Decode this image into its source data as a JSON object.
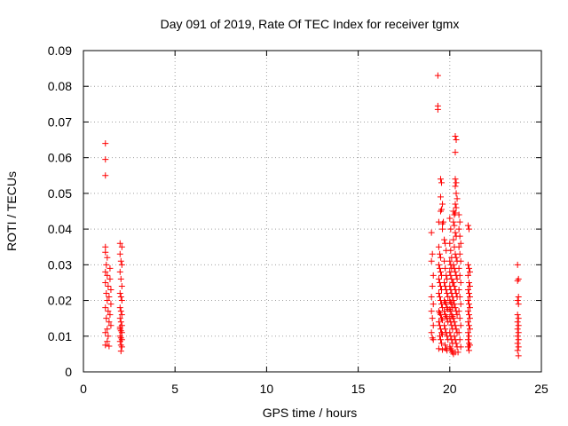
{
  "chart_data": {
    "type": "scatter",
    "title": "Day 091 of 2019, Rate Of TEC Index for receiver tgmx",
    "xlabel": "GPS time / hours",
    "ylabel": "ROTI / TECUs",
    "xlim": [
      0,
      25
    ],
    "ylim": [
      0,
      0.09
    ],
    "xticks": [
      0,
      5,
      10,
      15,
      20,
      25
    ],
    "yticks": [
      0,
      0.01,
      0.02,
      0.03,
      0.04,
      0.05,
      0.06,
      0.07,
      0.08,
      0.09
    ],
    "xtick_labels": [
      "0",
      "5",
      "10",
      "15",
      "20",
      "25"
    ],
    "ytick_labels": [
      "0",
      "0.01",
      "0.02",
      "0.03",
      "0.04",
      "0.05",
      "0.06",
      "0.07",
      "0.08",
      "0.09"
    ],
    "grid": true,
    "marker": "+",
    "marker_color": "#ff0000",
    "series": [
      {
        "name": "ROTI",
        "points": [
          [
            1.2,
            0.064
          ],
          [
            1.2,
            0.0595
          ],
          [
            1.2,
            0.055
          ],
          [
            1.2,
            0.035
          ],
          [
            1.2,
            0.0335
          ],
          [
            1.25,
            0.03
          ],
          [
            1.2,
            0.028
          ],
          [
            1.3,
            0.027
          ],
          [
            1.2,
            0.025
          ],
          [
            1.35,
            0.024
          ],
          [
            1.25,
            0.022
          ],
          [
            1.3,
            0.02
          ],
          [
            1.2,
            0.018
          ],
          [
            1.35,
            0.017
          ],
          [
            1.25,
            0.015
          ],
          [
            1.4,
            0.014
          ],
          [
            1.3,
            0.012
          ],
          [
            1.2,
            0.011
          ],
          [
            1.35,
            0.01
          ],
          [
            1.3,
            0.0085
          ],
          [
            1.2,
            0.0075
          ],
          [
            1.4,
            0.0072
          ],
          [
            1.45,
            0.029
          ],
          [
            1.45,
            0.026
          ],
          [
            1.5,
            0.023
          ],
          [
            1.5,
            0.019
          ],
          [
            1.45,
            0.016
          ],
          [
            1.5,
            0.013
          ],
          [
            1.4,
            0.021
          ],
          [
            1.3,
            0.032
          ],
          [
            2.0,
            0.036
          ],
          [
            2.1,
            0.035
          ],
          [
            2.0,
            0.033
          ],
          [
            2.05,
            0.031
          ],
          [
            2.1,
            0.03
          ],
          [
            2.0,
            0.028
          ],
          [
            2.05,
            0.026
          ],
          [
            2.1,
            0.024
          ],
          [
            2.0,
            0.022
          ],
          [
            2.05,
            0.021
          ],
          [
            2.1,
            0.02
          ],
          [
            2.0,
            0.018
          ],
          [
            2.05,
            0.017
          ],
          [
            2.1,
            0.016
          ],
          [
            2.0,
            0.015
          ],
          [
            2.05,
            0.014
          ],
          [
            2.1,
            0.013
          ],
          [
            2.0,
            0.012
          ],
          [
            2.05,
            0.0115
          ],
          [
            2.1,
            0.011
          ],
          [
            2.0,
            0.01
          ],
          [
            2.05,
            0.0095
          ],
          [
            2.1,
            0.009
          ],
          [
            2.0,
            0.0085
          ],
          [
            2.05,
            0.0075
          ],
          [
            2.1,
            0.007
          ],
          [
            2.05,
            0.0058
          ],
          [
            2.0,
            0.0125
          ],
          [
            19.0,
            0.039
          ],
          [
            19.05,
            0.033
          ],
          [
            19.0,
            0.031
          ],
          [
            19.1,
            0.027
          ],
          [
            19.05,
            0.024
          ],
          [
            19.0,
            0.021
          ],
          [
            19.1,
            0.019
          ],
          [
            19.0,
            0.017
          ],
          [
            19.05,
            0.015
          ],
          [
            19.1,
            0.013
          ],
          [
            19.0,
            0.011
          ],
          [
            19.05,
            0.0095
          ],
          [
            19.1,
            0.009
          ],
          [
            19.35,
            0.083
          ],
          [
            19.35,
            0.0745
          ],
          [
            19.35,
            0.0735
          ],
          [
            19.4,
            0.042
          ],
          [
            19.5,
            0.054
          ],
          [
            19.55,
            0.053
          ],
          [
            19.5,
            0.049
          ],
          [
            19.6,
            0.047
          ],
          [
            19.5,
            0.045
          ],
          [
            19.55,
            0.0455
          ],
          [
            19.6,
            0.0415
          ],
          [
            19.65,
            0.042
          ],
          [
            19.6,
            0.04
          ],
          [
            19.4,
            0.035
          ],
          [
            19.45,
            0.033
          ],
          [
            19.5,
            0.032
          ],
          [
            19.4,
            0.03
          ],
          [
            19.45,
            0.029
          ],
          [
            19.5,
            0.028
          ],
          [
            19.55,
            0.027
          ],
          [
            19.4,
            0.026
          ],
          [
            19.45,
            0.025
          ],
          [
            19.5,
            0.024
          ],
          [
            19.55,
            0.023
          ],
          [
            19.4,
            0.022
          ],
          [
            19.45,
            0.021
          ],
          [
            19.5,
            0.02
          ],
          [
            19.55,
            0.019
          ],
          [
            19.6,
            0.018
          ],
          [
            19.4,
            0.017
          ],
          [
            19.45,
            0.0165
          ],
          [
            19.5,
            0.016
          ],
          [
            19.55,
            0.015
          ],
          [
            19.6,
            0.0145
          ],
          [
            19.4,
            0.014
          ],
          [
            19.45,
            0.013
          ],
          [
            19.5,
            0.012
          ],
          [
            19.55,
            0.011
          ],
          [
            19.6,
            0.0105
          ],
          [
            19.45,
            0.01
          ],
          [
            19.5,
            0.009
          ],
          [
            19.55,
            0.008
          ],
          [
            19.4,
            0.0065
          ],
          [
            19.6,
            0.0062
          ],
          [
            19.7,
            0.037
          ],
          [
            19.75,
            0.036
          ],
          [
            19.8,
            0.034
          ],
          [
            19.7,
            0.031
          ],
          [
            19.75,
            0.029
          ],
          [
            19.8,
            0.027
          ],
          [
            19.85,
            0.026
          ],
          [
            19.7,
            0.025
          ],
          [
            19.75,
            0.024
          ],
          [
            19.8,
            0.023
          ],
          [
            19.85,
            0.022
          ],
          [
            19.9,
            0.021
          ],
          [
            19.7,
            0.02
          ],
          [
            19.75,
            0.0195
          ],
          [
            19.8,
            0.019
          ],
          [
            19.85,
            0.018
          ],
          [
            19.9,
            0.0175
          ],
          [
            19.7,
            0.017
          ],
          [
            19.75,
            0.016
          ],
          [
            19.8,
            0.0155
          ],
          [
            19.85,
            0.015
          ],
          [
            19.9,
            0.014
          ],
          [
            19.7,
            0.013
          ],
          [
            19.75,
            0.012
          ],
          [
            19.8,
            0.011
          ],
          [
            19.85,
            0.01
          ],
          [
            19.9,
            0.009
          ],
          [
            19.75,
            0.0075
          ],
          [
            19.8,
            0.0065
          ],
          [
            19.85,
            0.006
          ],
          [
            20.0,
            0.043
          ],
          [
            20.05,
            0.04
          ],
          [
            20.0,
            0.036
          ],
          [
            20.05,
            0.034
          ],
          [
            20.1,
            0.032
          ],
          [
            20.0,
            0.031
          ],
          [
            20.05,
            0.03
          ],
          [
            20.1,
            0.029
          ],
          [
            20.0,
            0.028
          ],
          [
            20.05,
            0.027
          ],
          [
            20.1,
            0.026
          ],
          [
            20.15,
            0.025
          ],
          [
            20.0,
            0.024
          ],
          [
            20.05,
            0.023
          ],
          [
            20.1,
            0.022
          ],
          [
            20.15,
            0.021
          ],
          [
            20.0,
            0.02
          ],
          [
            20.05,
            0.0195
          ],
          [
            20.1,
            0.019
          ],
          [
            20.15,
            0.018
          ],
          [
            20.0,
            0.0175
          ],
          [
            20.05,
            0.017
          ],
          [
            20.1,
            0.016
          ],
          [
            20.15,
            0.0155
          ],
          [
            20.0,
            0.015
          ],
          [
            20.05,
            0.014
          ],
          [
            20.1,
            0.013
          ],
          [
            20.15,
            0.012
          ],
          [
            20.0,
            0.011
          ],
          [
            20.05,
            0.01
          ],
          [
            20.1,
            0.009
          ],
          [
            20.15,
            0.008
          ],
          [
            20.0,
            0.007
          ],
          [
            20.05,
            0.0065
          ],
          [
            20.1,
            0.006
          ],
          [
            20.15,
            0.0055
          ],
          [
            20.2,
            0.005
          ],
          [
            20.2,
            0.045
          ],
          [
            20.25,
            0.044
          ],
          [
            20.3,
            0.0445
          ],
          [
            20.2,
            0.042
          ],
          [
            20.25,
            0.041
          ],
          [
            20.3,
            0.039
          ],
          [
            20.35,
            0.038
          ],
          [
            20.2,
            0.037
          ],
          [
            20.25,
            0.035
          ],
          [
            20.3,
            0.033
          ],
          [
            20.35,
            0.032
          ],
          [
            20.4,
            0.031
          ],
          [
            20.2,
            0.03
          ],
          [
            20.25,
            0.029
          ],
          [
            20.3,
            0.028
          ],
          [
            20.35,
            0.027
          ],
          [
            20.4,
            0.026
          ],
          [
            20.2,
            0.025
          ],
          [
            20.25,
            0.024
          ],
          [
            20.3,
            0.023
          ],
          [
            20.35,
            0.022
          ],
          [
            20.4,
            0.021
          ],
          [
            20.2,
            0.02
          ],
          [
            20.25,
            0.019
          ],
          [
            20.3,
            0.018
          ],
          [
            20.35,
            0.017
          ],
          [
            20.4,
            0.016
          ],
          [
            20.2,
            0.015
          ],
          [
            20.25,
            0.014
          ],
          [
            20.3,
            0.013
          ],
          [
            20.35,
            0.012
          ],
          [
            20.4,
            0.011
          ],
          [
            20.25,
            0.01
          ],
          [
            20.3,
            0.009
          ],
          [
            20.35,
            0.008
          ],
          [
            20.4,
            0.007
          ],
          [
            20.3,
            0.0055
          ],
          [
            20.3,
            0.066
          ],
          [
            20.35,
            0.065
          ],
          [
            20.3,
            0.0615
          ],
          [
            20.3,
            0.054
          ],
          [
            20.35,
            0.053
          ],
          [
            20.3,
            0.052
          ],
          [
            20.35,
            0.05
          ],
          [
            20.4,
            0.0485
          ],
          [
            20.3,
            0.047
          ],
          [
            20.35,
            0.046
          ],
          [
            20.5,
            0.044
          ],
          [
            20.55,
            0.042
          ],
          [
            20.5,
            0.04
          ],
          [
            20.55,
            0.038
          ],
          [
            20.6,
            0.036
          ],
          [
            20.5,
            0.035
          ],
          [
            20.55,
            0.033
          ],
          [
            20.6,
            0.031
          ],
          [
            20.5,
            0.029
          ],
          [
            20.55,
            0.027
          ],
          [
            20.6,
            0.025
          ],
          [
            20.5,
            0.023
          ],
          [
            20.55,
            0.021
          ],
          [
            20.6,
            0.019
          ],
          [
            20.5,
            0.017
          ],
          [
            20.55,
            0.015
          ],
          [
            20.6,
            0.013
          ],
          [
            20.5,
            0.011
          ],
          [
            20.55,
            0.009
          ],
          [
            20.6,
            0.007
          ],
          [
            20.45,
            0.0055
          ],
          [
            21.0,
            0.041
          ],
          [
            21.05,
            0.04
          ],
          [
            21.0,
            0.03
          ],
          [
            21.05,
            0.029
          ],
          [
            21.1,
            0.028
          ],
          [
            21.0,
            0.027
          ],
          [
            21.05,
            0.025
          ],
          [
            21.1,
            0.024
          ],
          [
            21.0,
            0.023
          ],
          [
            21.05,
            0.022
          ],
          [
            21.1,
            0.021
          ],
          [
            21.0,
            0.02
          ],
          [
            21.05,
            0.019
          ],
          [
            21.1,
            0.018
          ],
          [
            21.0,
            0.017
          ],
          [
            21.05,
            0.016
          ],
          [
            21.1,
            0.015
          ],
          [
            21.0,
            0.014
          ],
          [
            21.05,
            0.013
          ],
          [
            21.1,
            0.012
          ],
          [
            21.0,
            0.011
          ],
          [
            21.05,
            0.01
          ],
          [
            21.0,
            0.009
          ],
          [
            21.05,
            0.008
          ],
          [
            21.1,
            0.0075
          ],
          [
            21.0,
            0.007
          ],
          [
            21.05,
            0.006
          ],
          [
            23.7,
            0.03
          ],
          [
            23.75,
            0.026
          ],
          [
            23.7,
            0.0255
          ],
          [
            23.75,
            0.021
          ],
          [
            23.7,
            0.02
          ],
          [
            23.75,
            0.019
          ],
          [
            23.7,
            0.016
          ],
          [
            23.75,
            0.015
          ],
          [
            23.7,
            0.014
          ],
          [
            23.75,
            0.013
          ],
          [
            23.7,
            0.012
          ],
          [
            23.75,
            0.011
          ],
          [
            23.7,
            0.01
          ],
          [
            23.75,
            0.009
          ],
          [
            23.7,
            0.008
          ],
          [
            23.75,
            0.007
          ],
          [
            23.7,
            0.006
          ],
          [
            23.75,
            0.0045
          ]
        ]
      }
    ]
  }
}
